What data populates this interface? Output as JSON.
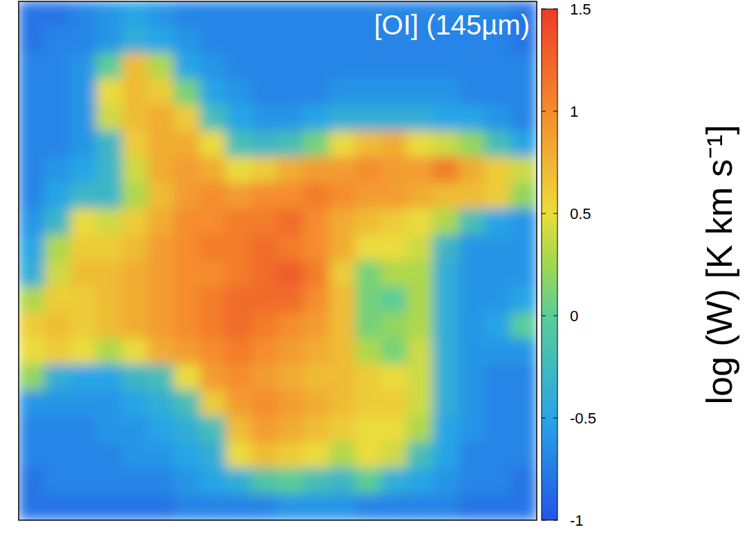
{
  "chart_data": {
    "type": "heatmap",
    "title": "[OI] (145µm)",
    "tick_labels": false,
    "colorbar_label": "log (W) [K km s⁻¹]",
    "colorbar_lim": [
      -1,
      1.5
    ],
    "colorbar_ticks": [
      -1,
      -0.5,
      0,
      0.5,
      1,
      1.5
    ],
    "values": [
      [
        -0.8,
        -0.8,
        -0.7,
        -0.6,
        -0.5,
        -0.6,
        -0.7,
        -0.7,
        -0.7,
        -0.7,
        -0.7,
        -0.7,
        -0.7,
        -0.7,
        -0.7,
        -0.7,
        -0.7,
        -0.7,
        -0.7,
        -0.8
      ],
      [
        -0.8,
        -0.7,
        -0.7,
        -0.6,
        -0.4,
        -0.5,
        -0.6,
        -0.7,
        -0.7,
        -0.7,
        -0.7,
        -0.7,
        -0.7,
        -0.7,
        -0.7,
        -0.7,
        -0.7,
        -0.7,
        -0.7,
        -0.8
      ],
      [
        -0.7,
        -0.7,
        -0.6,
        0.0,
        0.7,
        0.3,
        -0.5,
        -0.6,
        -0.7,
        -0.7,
        -0.7,
        -0.7,
        -0.7,
        -0.7,
        -0.7,
        -0.7,
        -0.7,
        -0.7,
        -0.7,
        -0.7
      ],
      [
        -0.7,
        -0.7,
        -0.6,
        0.5,
        0.7,
        0.6,
        0.1,
        -0.5,
        -0.6,
        -0.7,
        -0.7,
        -0.7,
        -0.6,
        -0.6,
        -0.6,
        -0.6,
        -0.6,
        -0.7,
        -0.7,
        -0.7
      ],
      [
        -0.7,
        -0.7,
        -0.6,
        0.4,
        0.7,
        0.8,
        0.6,
        -0.2,
        -0.5,
        -0.6,
        -0.6,
        -0.5,
        -0.4,
        -0.4,
        -0.4,
        -0.4,
        -0.5,
        -0.5,
        -0.6,
        -0.7
      ],
      [
        -0.7,
        -0.7,
        -0.6,
        -0.3,
        0.6,
        0.8,
        0.8,
        0.5,
        -0.2,
        -0.3,
        -0.2,
        0.1,
        0.5,
        0.7,
        0.8,
        0.5,
        0.4,
        0.2,
        -0.2,
        -0.5
      ],
      [
        -0.7,
        -0.6,
        -0.5,
        -0.3,
        0.4,
        0.8,
        0.9,
        0.8,
        0.5,
        0.6,
        0.8,
        0.9,
        0.9,
        1.0,
        0.9,
        0.9,
        1.1,
        0.8,
        0.6,
        0.4
      ],
      [
        -0.7,
        -0.5,
        -0.3,
        -0.3,
        0.3,
        0.7,
        0.9,
        1.0,
        0.9,
        1.0,
        1.0,
        1.1,
        1.0,
        0.9,
        0.9,
        0.8,
        0.7,
        0.7,
        0.6,
        0.2
      ],
      [
        -0.6,
        -0.3,
        0.5,
        0.4,
        0.6,
        0.8,
        1.0,
        1.0,
        1.1,
        1.1,
        1.2,
        1.0,
        0.8,
        0.7,
        0.6,
        0.5,
        0.3,
        -0.2,
        -0.5,
        -0.6
      ],
      [
        -0.5,
        0.3,
        0.6,
        0.6,
        0.7,
        0.9,
        1.0,
        1.1,
        1.1,
        1.2,
        1.1,
        1.0,
        0.8,
        0.5,
        0.5,
        0.4,
        -0.3,
        -0.6,
        -0.6,
        -0.6
      ],
      [
        -0.4,
        0.4,
        0.7,
        0.7,
        0.8,
        0.9,
        1.0,
        1.0,
        1.1,
        1.2,
        1.3,
        1.1,
        0.6,
        0.1,
        0.3,
        0.3,
        -0.4,
        -0.6,
        -0.6,
        -0.6
      ],
      [
        0.3,
        0.6,
        0.6,
        0.7,
        0.8,
        0.9,
        1.0,
        1.1,
        1.2,
        1.2,
        1.2,
        1.0,
        0.7,
        0.1,
        0.0,
        0.3,
        -0.4,
        -0.6,
        -0.6,
        -0.5
      ],
      [
        0.6,
        0.7,
        0.6,
        0.7,
        0.8,
        0.9,
        1.0,
        1.1,
        1.2,
        1.1,
        1.0,
        0.9,
        0.7,
        0.1,
        0.2,
        0.3,
        -0.4,
        -0.6,
        -0.5,
        0.0
      ],
      [
        0.5,
        0.6,
        0.5,
        0.3,
        0.5,
        0.8,
        0.9,
        1.0,
        1.1,
        1.0,
        0.9,
        0.8,
        0.7,
        0.3,
        0.1,
        0.4,
        -0.4,
        -0.6,
        -0.6,
        -0.6
      ],
      [
        0.2,
        -0.4,
        -0.5,
        -0.5,
        -0.3,
        -0.2,
        0.5,
        0.9,
        1.0,
        0.9,
        0.8,
        0.7,
        0.7,
        0.6,
        0.5,
        0.4,
        -0.4,
        -0.6,
        -0.7,
        -0.7
      ],
      [
        -0.6,
        -0.6,
        -0.6,
        -0.6,
        -0.5,
        -0.4,
        -0.2,
        0.6,
        0.9,
        1.0,
        0.9,
        0.8,
        0.7,
        0.6,
        0.6,
        0.4,
        -0.4,
        -0.6,
        -0.7,
        -0.7
      ],
      [
        -0.7,
        -0.7,
        -0.7,
        -0.6,
        -0.6,
        -0.5,
        -0.4,
        -0.2,
        0.7,
        0.9,
        0.8,
        0.7,
        0.6,
        0.5,
        0.5,
        0.3,
        -0.5,
        -0.6,
        -0.7,
        -0.7
      ],
      [
        -0.7,
        -0.7,
        -0.7,
        -0.7,
        -0.6,
        -0.6,
        -0.5,
        -0.4,
        0.5,
        0.7,
        0.6,
        0.5,
        0.3,
        0.5,
        0.4,
        -0.2,
        -0.5,
        -0.7,
        -0.7,
        -0.7
      ],
      [
        -0.8,
        -0.7,
        -0.7,
        -0.7,
        -0.7,
        -0.7,
        -0.6,
        -0.5,
        -0.4,
        -0.1,
        0.0,
        -0.2,
        -0.3,
        0.0,
        -0.4,
        -0.5,
        -0.6,
        -0.7,
        -0.7,
        -0.8
      ],
      [
        -0.8,
        -0.8,
        -0.8,
        -0.8,
        -0.8,
        -0.8,
        -0.7,
        -0.7,
        -0.7,
        -0.7,
        -0.6,
        -0.6,
        -0.6,
        -0.7,
        -0.7,
        -0.7,
        -0.7,
        -0.8,
        -0.8,
        -0.8
      ]
    ]
  }
}
